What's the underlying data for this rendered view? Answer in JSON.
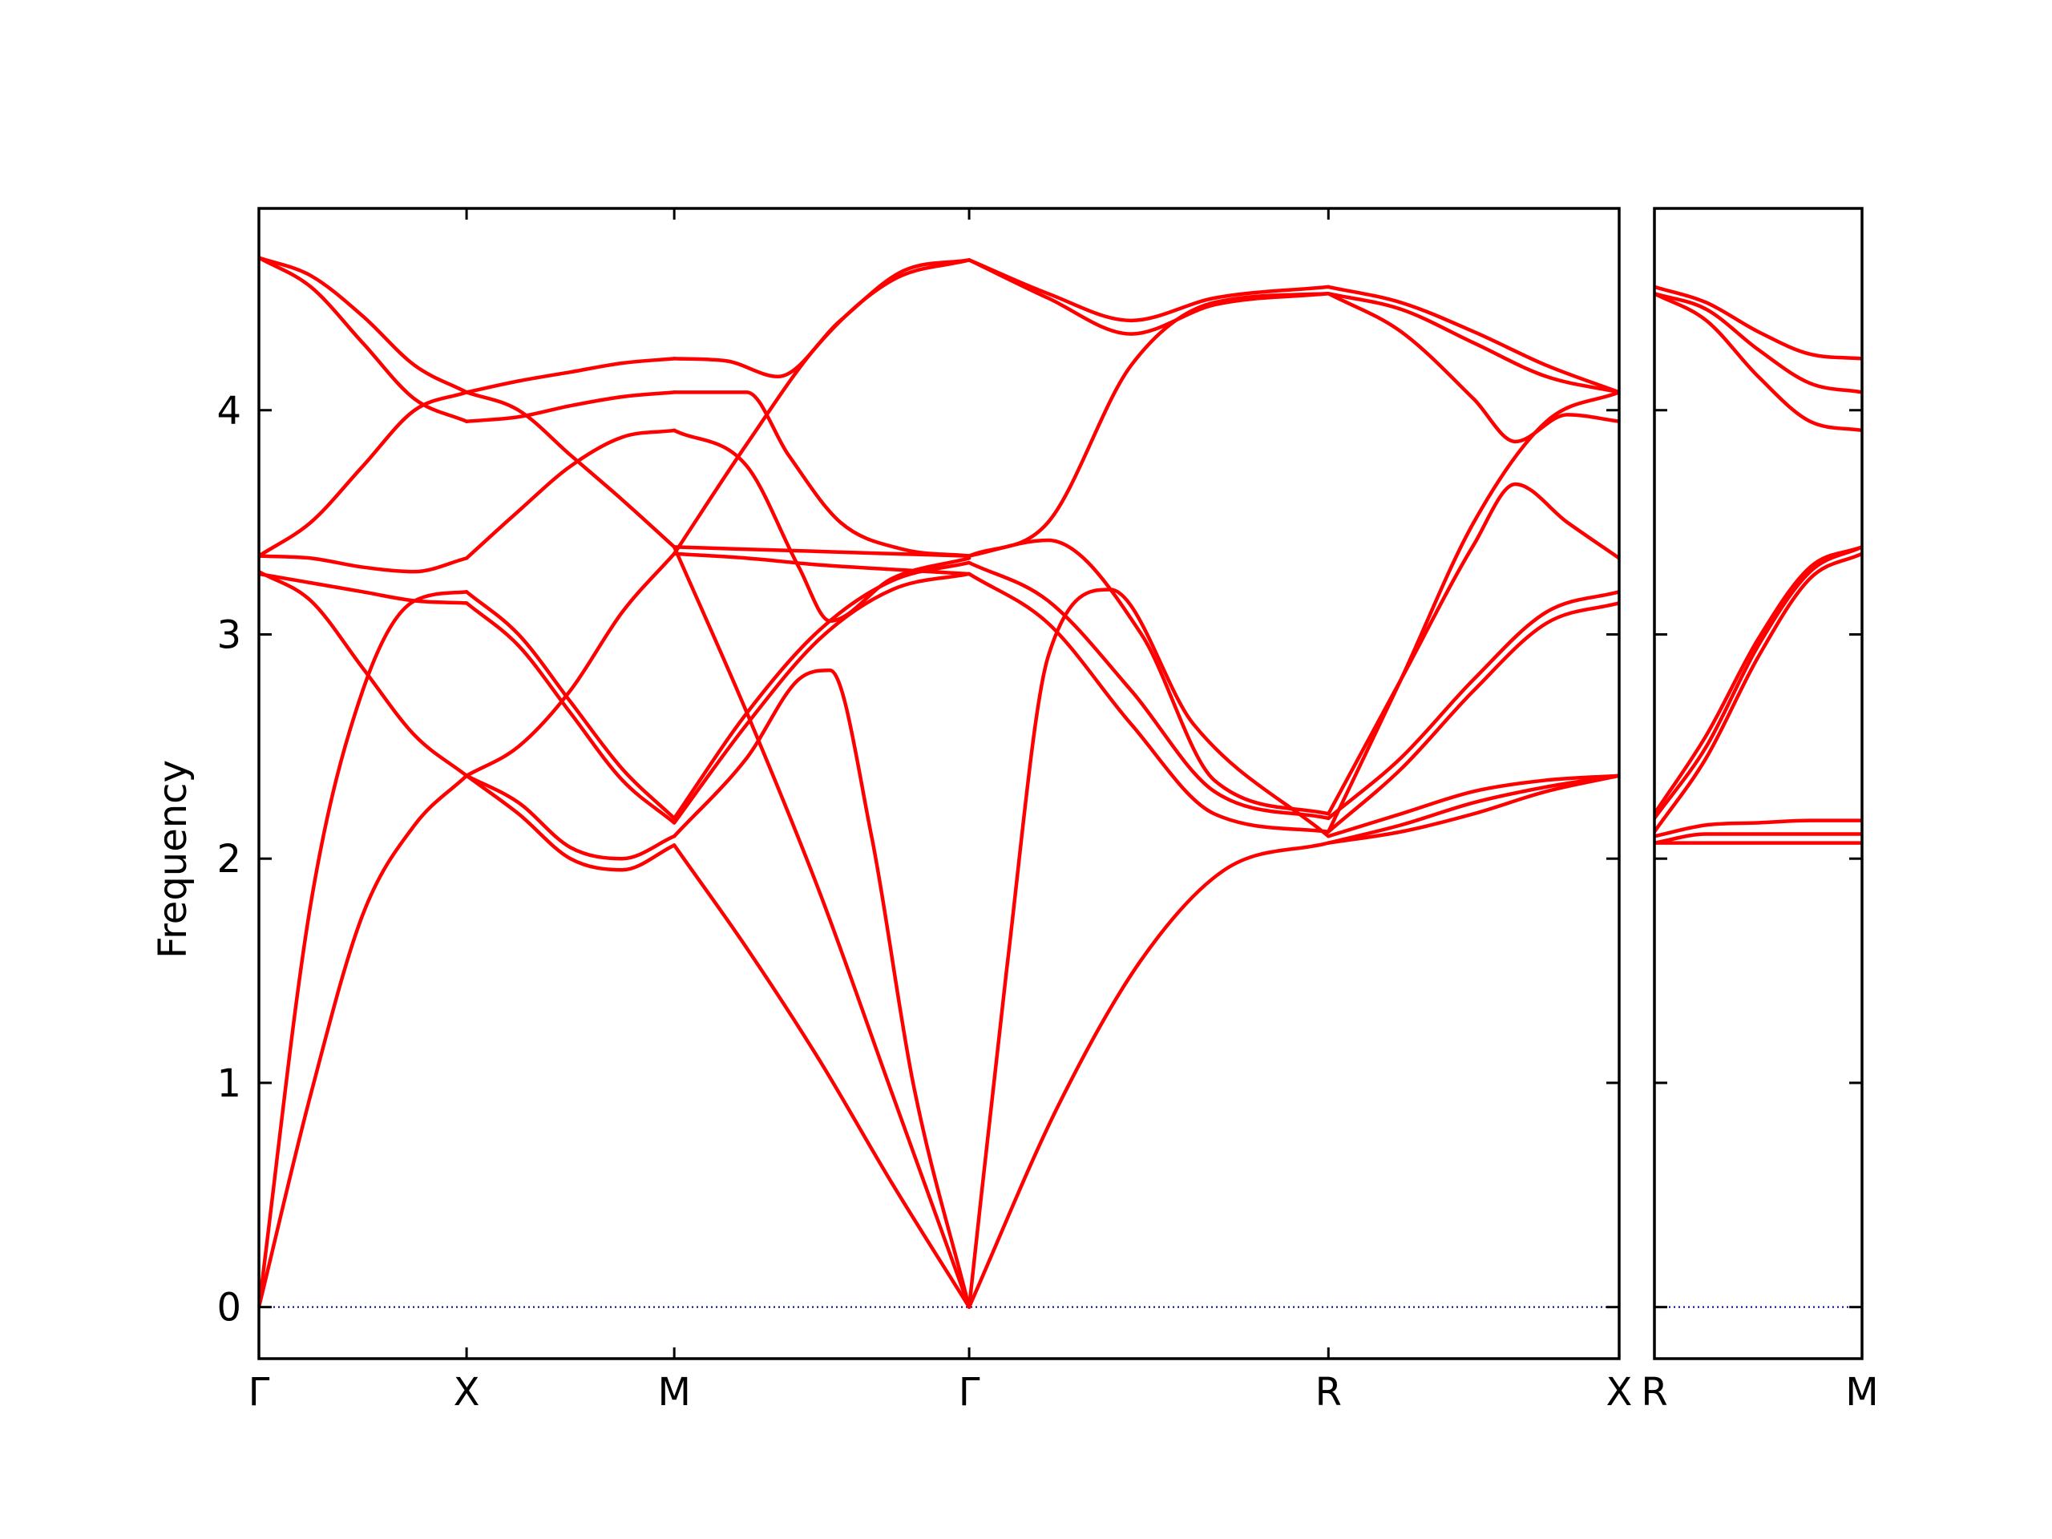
{
  "colors": {
    "band": "#ff0000",
    "zero_line": "#00008b",
    "axes": "#000000"
  },
  "chart_data": {
    "type": "line",
    "title": "",
    "ylabel": "Frequency",
    "ylim": [
      -0.23,
      4.9
    ],
    "yticks": [
      0,
      1,
      2,
      3,
      4
    ],
    "grid": false,
    "zero_line": true,
    "segments": [
      {
        "name": "Γ-X",
        "path_start": 0,
        "path_end": 1,
        "labels": [
          "Γ",
          "X"
        ],
        "bands": [
          {
            "x": [
              0,
              0.25,
              0.5,
              0.75,
              1
            ],
            "y": [
              0,
              0.95,
              1.75,
              2.15,
              2.37
            ]
          },
          {
            "x": [
              0,
              0.25,
              0.5,
              0.75,
              1
            ],
            "y": [
              0,
              1.8,
              2.75,
              3.15,
              3.19
            ]
          },
          {
            "x": [
              0,
              0.25,
              0.5,
              0.75,
              1
            ],
            "y": [
              3.27,
              3.23,
              3.19,
              3.15,
              3.14
            ]
          },
          {
            "x": [
              0,
              0.25,
              0.5,
              0.75,
              1
            ],
            "y": [
              3.28,
              3.15,
              2.85,
              2.55,
              2.37
            ]
          },
          {
            "x": [
              0,
              0.25,
              0.5,
              0.75,
              1
            ],
            "y": [
              3.35,
              3.34,
              3.3,
              3.28,
              3.34
            ]
          },
          {
            "x": [
              0,
              0.25,
              0.5,
              0.75,
              1
            ],
            "y": [
              3.35,
              3.5,
              3.75,
              4.0,
              4.08
            ]
          },
          {
            "x": [
              0,
              0.25,
              0.5,
              0.75,
              1
            ],
            "y": [
              4.68,
              4.55,
              4.3,
              4.05,
              3.95
            ]
          },
          {
            "x": [
              0,
              0.25,
              0.5,
              0.75,
              1
            ],
            "y": [
              4.68,
              4.6,
              4.42,
              4.2,
              4.08
            ]
          }
        ]
      },
      {
        "name": "X-M",
        "path_start": 1,
        "path_end": 2,
        "labels": [
          "X",
          "M"
        ],
        "bands": [
          {
            "x": [
              1,
              1.25,
              1.5,
              1.75,
              2
            ],
            "y": [
              2.37,
              2.2,
              2.0,
              1.95,
              2.06
            ]
          },
          {
            "x": [
              1,
              1.25,
              1.5,
              1.75,
              2
            ],
            "y": [
              2.37,
              2.25,
              2.05,
              2.0,
              2.1
            ]
          },
          {
            "x": [
              1,
              1.25,
              1.5,
              1.75,
              2
            ],
            "y": [
              3.14,
              2.95,
              2.65,
              2.35,
              2.16
            ]
          },
          {
            "x": [
              1,
              1.25,
              1.5,
              1.75,
              2
            ],
            "y": [
              3.19,
              3.0,
              2.7,
              2.4,
              2.18
            ]
          },
          {
            "x": [
              1,
              1.25,
              1.5,
              1.75,
              2
            ],
            "y": [
              2.37,
              2.5,
              2.75,
              3.1,
              3.36
            ]
          },
          {
            "x": [
              1,
              1.25,
              1.5,
              1.75,
              2
            ],
            "y": [
              3.34,
              3.55,
              3.75,
              3.88,
              3.91
            ]
          },
          {
            "x": [
              1,
              1.25,
              1.5,
              1.75,
              2
            ],
            "y": [
              4.08,
              4.0,
              3.8,
              3.6,
              3.39
            ]
          },
          {
            "x": [
              1,
              1.25,
              1.5,
              1.75,
              2
            ],
            "y": [
              3.95,
              3.97,
              4.02,
              4.06,
              4.08
            ]
          },
          {
            "x": [
              1,
              1.25,
              1.5,
              1.75,
              2
            ],
            "y": [
              4.08,
              4.13,
              4.17,
              4.21,
              4.23
            ]
          }
        ]
      },
      {
        "name": "M-Γ",
        "path_start": 2,
        "path_end": 3.42,
        "labels": [
          "M",
          "Γ"
        ],
        "bands": [
          {
            "x": [
              2,
              2.35,
              2.7,
              3.05,
              3.42
            ],
            "y": [
              2.06,
              1.6,
              1.1,
              0.55,
              0
            ]
          },
          {
            "x": [
              2,
              2.35,
              2.7,
              3.05,
              3.42
            ],
            "y": [
              3.39,
              2.65,
              1.85,
              0.95,
              0
            ]
          },
          {
            "x": [
              2,
              2.35,
              2.6,
              2.75,
              2.95,
              3.15,
              3.42
            ],
            "y": [
              2.1,
              2.45,
              2.8,
              2.84,
              2.1,
              1.0,
              0
            ]
          },
          {
            "x": [
              2,
              2.35,
              2.7,
              3.05,
              3.42
            ],
            "y": [
              2.16,
              2.6,
              2.98,
              3.2,
              3.27
            ]
          },
          {
            "x": [
              2,
              2.35,
              2.7,
              3.05,
              3.42
            ],
            "y": [
              2.18,
              2.65,
              3.02,
              3.24,
              3.32
            ]
          },
          {
            "x": [
              2,
              2.35,
              2.6,
              2.75,
              3.05,
              3.42
            ],
            "y": [
              3.91,
              3.75,
              3.3,
              3.06,
              3.25,
              3.34
            ]
          },
          {
            "x": [
              2,
              2.35,
              2.7,
              3.05,
              3.42
            ],
            "y": [
              3.36,
              3.34,
              3.31,
              3.29,
              3.27
            ]
          },
          {
            "x": [
              2,
              2.35,
              2.7,
              3.05,
              3.42
            ],
            "y": [
              3.39,
              3.38,
              3.37,
              3.36,
              3.35
            ]
          },
          {
            "x": [
              2,
              2.35,
              2.7,
              3.05,
              3.42
            ],
            "y": [
              3.36,
              3.85,
              4.3,
              4.58,
              4.67
            ]
          },
          {
            "x": [
              2,
              2.35,
              2.55,
              2.8,
              3.1,
              3.42
            ],
            "y": [
              4.08,
              4.08,
              3.8,
              3.5,
              3.38,
              3.35
            ]
          },
          {
            "x": [
              2,
              2.25,
              2.5,
              2.8,
              3.1,
              3.42
            ],
            "y": [
              4.23,
              4.22,
              4.15,
              4.4,
              4.62,
              4.67
            ]
          }
        ]
      },
      {
        "name": "Γ-R",
        "path_start": 3.42,
        "path_end": 5.15,
        "labels": [
          "Γ",
          "R"
        ],
        "bands": [
          {
            "x": [
              3.42,
              3.85,
              4.25,
              4.65,
              5.15
            ],
            "y": [
              0,
              0.9,
              1.55,
              1.95,
              2.07
            ]
          },
          {
            "x": [
              3.42,
              3.6,
              3.8,
              4.1,
              4.5,
              5.15
            ],
            "y": [
              0,
              1.5,
              2.9,
              3.2,
              2.6,
              2.1
            ]
          },
          {
            "x": [
              3.42,
              3.8,
              4.2,
              4.6,
              5.15
            ],
            "y": [
              3.27,
              3.05,
              2.6,
              2.2,
              2.12
            ]
          },
          {
            "x": [
              3.42,
              3.8,
              4.2,
              4.6,
              5.15
            ],
            "y": [
              3.32,
              3.15,
              2.75,
              2.3,
              2.18
            ]
          },
          {
            "x": [
              3.42,
              3.8,
              4.25,
              4.6,
              5.15
            ],
            "y": [
              3.35,
              3.42,
              3.0,
              2.35,
              2.2
            ]
          },
          {
            "x": [
              3.42,
              3.8,
              4.2,
              4.6,
              5.15
            ],
            "y": [
              3.35,
              3.5,
              4.2,
              4.48,
              4.52
            ]
          },
          {
            "x": [
              3.42,
              3.8,
              4.2,
              4.6,
              5.15
            ],
            "y": [
              4.67,
              4.52,
              4.4,
              4.5,
              4.55
            ]
          },
          {
            "x": [
              3.42,
              3.8,
              4.2,
              4.6,
              5.15
            ],
            "y": [
              4.67,
              4.5,
              4.34,
              4.47,
              4.52
            ]
          }
        ]
      },
      {
        "name": "R-X",
        "path_start": 5.15,
        "path_end": 6.55,
        "labels": [
          "R",
          "X"
        ],
        "bands": [
          {
            "x": [
              5.15,
              5.5,
              5.85,
              6.2,
              6.55
            ],
            "y": [
              2.07,
              2.12,
              2.2,
              2.3,
              2.37
            ]
          },
          {
            "x": [
              5.15,
              5.5,
              5.85,
              6.2,
              6.55
            ],
            "y": [
              2.07,
              2.15,
              2.25,
              2.32,
              2.37
            ]
          },
          {
            "x": [
              5.15,
              5.5,
              5.85,
              6.2,
              6.55
            ],
            "y": [
              2.1,
              2.2,
              2.3,
              2.35,
              2.37
            ]
          },
          {
            "x": [
              5.15,
              5.5,
              5.85,
              6.2,
              6.55
            ],
            "y": [
              2.12,
              2.4,
              2.75,
              3.05,
              3.14
            ]
          },
          {
            "x": [
              5.15,
              5.5,
              5.85,
              6.2,
              6.55
            ],
            "y": [
              2.18,
              2.45,
              2.8,
              3.1,
              3.19
            ]
          },
          {
            "x": [
              5.15,
              5.5,
              5.85,
              6.05,
              6.3,
              6.55
            ],
            "y": [
              2.2,
              2.8,
              3.4,
              3.67,
              3.5,
              3.34
            ]
          },
          {
            "x": [
              5.15,
              5.5,
              5.85,
              6.2,
              6.55
            ],
            "y": [
              2.12,
              2.8,
              3.5,
              3.95,
              4.08
            ]
          },
          {
            "x": [
              5.15,
              5.5,
              5.85,
              6.05,
              6.3,
              6.55
            ],
            "y": [
              4.52,
              4.35,
              4.05,
              3.86,
              3.98,
              3.95
            ]
          },
          {
            "x": [
              5.15,
              5.5,
              5.85,
              6.2,
              6.55
            ],
            "y": [
              4.52,
              4.45,
              4.3,
              4.15,
              4.08
            ]
          },
          {
            "x": [
              5.15,
              5.5,
              5.85,
              6.2,
              6.55
            ],
            "y": [
              4.55,
              4.48,
              4.35,
              4.2,
              4.08
            ]
          }
        ]
      },
      {
        "name": "R-M",
        "path_start": 6.55,
        "path_end": 7.55,
        "labels": [
          "R",
          "M"
        ],
        "bands": [
          {
            "x": [
              6.55,
              6.8,
              7.05,
              7.3,
              7.55
            ],
            "y": [
              2.07,
              2.07,
              2.07,
              2.07,
              2.07
            ]
          },
          {
            "x": [
              6.55,
              6.8,
              7.05,
              7.3,
              7.55
            ],
            "y": [
              2.07,
              2.11,
              2.11,
              2.11,
              2.11
            ]
          },
          {
            "x": [
              6.55,
              6.8,
              7.05,
              7.3,
              7.55
            ],
            "y": [
              2.1,
              2.15,
              2.16,
              2.17,
              2.17
            ]
          },
          {
            "x": [
              6.55,
              6.8,
              7.05,
              7.3,
              7.55
            ],
            "y": [
              2.12,
              2.45,
              2.9,
              3.25,
              3.36
            ]
          },
          {
            "x": [
              6.55,
              6.8,
              7.05,
              7.3,
              7.55
            ],
            "y": [
              2.18,
              2.5,
              2.95,
              3.28,
              3.39
            ]
          },
          {
            "x": [
              6.55,
              6.8,
              7.05,
              7.3,
              7.55
            ],
            "y": [
              2.2,
              2.55,
              2.98,
              3.3,
              3.39
            ]
          },
          {
            "x": [
              6.55,
              6.8,
              7.05,
              7.3,
              7.55
            ],
            "y": [
              4.52,
              4.4,
              4.15,
              3.95,
              3.91
            ]
          },
          {
            "x": [
              6.55,
              6.8,
              7.05,
              7.3,
              7.55
            ],
            "y": [
              4.52,
              4.45,
              4.27,
              4.12,
              4.08
            ]
          },
          {
            "x": [
              6.55,
              6.8,
              7.05,
              7.3,
              7.55
            ],
            "y": [
              4.55,
              4.48,
              4.35,
              4.25,
              4.23
            ]
          }
        ]
      }
    ],
    "panels": [
      {
        "name": "main",
        "xlim": [
          0,
          6.55
        ],
        "segments": [
          "Γ-X",
          "X-M",
          "M-Γ",
          "Γ-R",
          "R-X"
        ],
        "xticks": [
          {
            "x": 0,
            "label": "Γ"
          },
          {
            "x": 1,
            "label": "X"
          },
          {
            "x": 2,
            "label": "M"
          },
          {
            "x": 3.42,
            "label": "Γ"
          },
          {
            "x": 5.15,
            "label": "R"
          },
          {
            "x": 6.55,
            "label": "X"
          }
        ]
      },
      {
        "name": "side",
        "xlim": [
          6.55,
          7.55
        ],
        "segments": [
          "R-M"
        ],
        "xticks": [
          {
            "x": 6.55,
            "label": "R"
          },
          {
            "x": 7.55,
            "label": "M"
          }
        ]
      }
    ]
  }
}
